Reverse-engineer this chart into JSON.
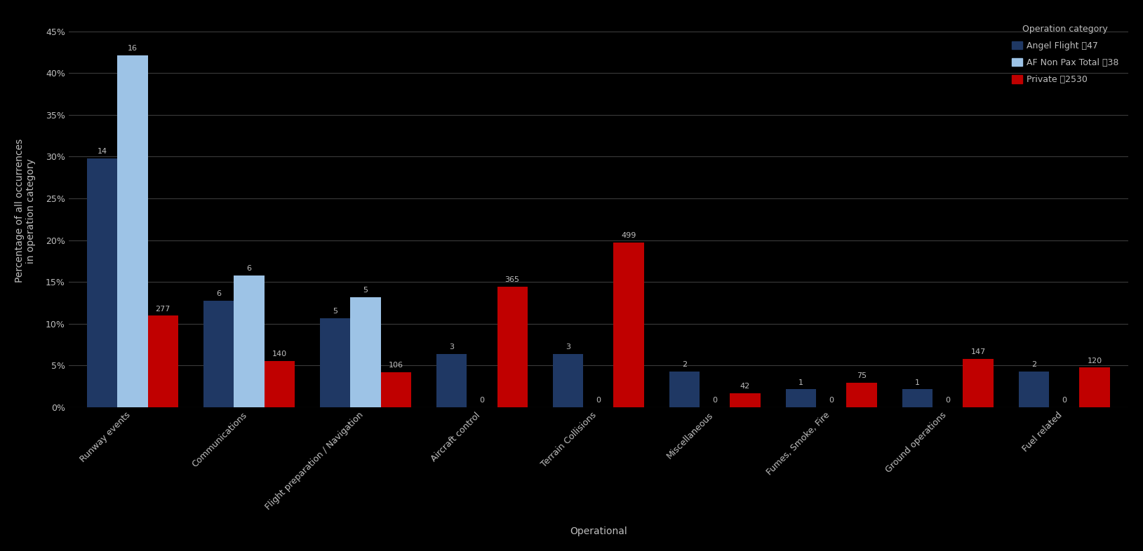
{
  "categories": [
    "Runway events",
    "Communications",
    "Flight preparation / Navigation",
    "Aircraft control",
    "Terrain Collisions",
    "Miscellaneous",
    "Fumes, Smoke, Fire",
    "Ground operations",
    "Fuel related"
  ],
  "series": [
    {
      "name": "Angel Flight ΢47",
      "color": "#1F3864",
      "counts": [
        14,
        6,
        5,
        3,
        3,
        2,
        1,
        1,
        2
      ],
      "values": [
        29.79,
        12.77,
        10.64,
        6.38,
        6.38,
        4.26,
        2.13,
        2.13,
        4.26
      ]
    },
    {
      "name": "AF Non Pax Total ΢38",
      "color": "#9DC3E6",
      "counts": [
        16,
        6,
        5,
        0,
        0,
        0,
        0,
        0,
        0
      ],
      "values": [
        42.11,
        15.79,
        13.16,
        0.0,
        0.0,
        0.0,
        0.0,
        0.0,
        0.0
      ]
    },
    {
      "name": "Private ΢2530",
      "color": "#C00000",
      "counts": [
        277,
        140,
        106,
        365,
        499,
        42,
        75,
        147,
        120
      ],
      "values": [
        10.95,
        5.53,
        4.19,
        14.43,
        19.72,
        1.66,
        2.96,
        5.81,
        4.74
      ]
    }
  ],
  "ylabel": "Percentage of all occurrences\nin operation category",
  "xlabel": "Operational",
  "legend_title": "Operation category",
  "ylim_max": 47,
  "yticks": [
    0,
    5,
    10,
    15,
    20,
    25,
    30,
    35,
    40,
    45
  ],
  "ytick_labels": [
    "0%",
    "5%",
    "10%",
    "15%",
    "20%",
    "25%",
    "30%",
    "35%",
    "40%",
    "45%"
  ],
  "background_color": "#000000",
  "grid_color": "#3A3A3A",
  "text_color": "#BEBEBE",
  "axis_label_fontsize": 10,
  "tick_fontsize": 9,
  "bar_label_fontsize": 8,
  "legend_fontsize": 9,
  "bar_width": 0.26
}
